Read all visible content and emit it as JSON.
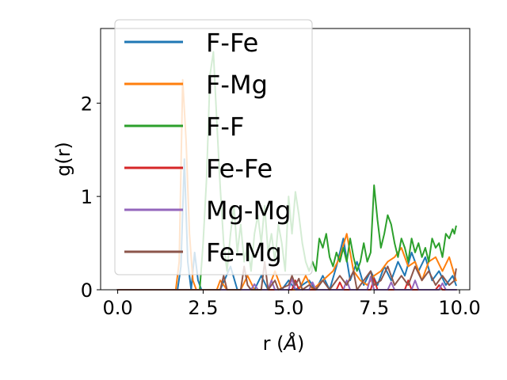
{
  "chart_data": {
    "type": "line",
    "xlabel_main": "r (",
    "xlabel_unit": "Å",
    "xlabel_close": ")",
    "ylabel": "g(r)",
    "xlim": [
      -0.5,
      10.3
    ],
    "ylim": [
      0,
      2.8
    ],
    "xticks": [
      0.0,
      2.5,
      5.0,
      7.5,
      10.0
    ],
    "xtick_labels": [
      "0.0",
      "2.5",
      "5.0",
      "7.5",
      "10.0"
    ],
    "yticks": [
      0,
      1,
      2
    ],
    "ytick_labels": [
      "0",
      "1",
      "2"
    ],
    "legend_position": "upper left",
    "grid": false,
    "series": [
      {
        "name": "F-Fe",
        "color": "#1f77b4",
        "points": [
          [
            0,
            0
          ],
          [
            1.75,
            0
          ],
          [
            1.85,
            0.25
          ],
          [
            1.95,
            1.4
          ],
          [
            2.05,
            0.3
          ],
          [
            2.15,
            0
          ],
          [
            2.25,
            0.4
          ],
          [
            2.35,
            0.1
          ],
          [
            2.45,
            0
          ],
          [
            3.0,
            0
          ],
          [
            3.3,
            0.25
          ],
          [
            3.5,
            0
          ],
          [
            4.0,
            0
          ],
          [
            4.2,
            0.15
          ],
          [
            4.4,
            0
          ],
          [
            4.8,
            0
          ],
          [
            5.0,
            0.1
          ],
          [
            5.2,
            0
          ],
          [
            5.6,
            0.1
          ],
          [
            5.8,
            0
          ],
          [
            6.0,
            0.15
          ],
          [
            6.2,
            0
          ],
          [
            6.4,
            0.25
          ],
          [
            6.6,
            0.55
          ],
          [
            6.8,
            0.1
          ],
          [
            7.0,
            0.3
          ],
          [
            7.2,
            0.05
          ],
          [
            7.4,
            0.2
          ],
          [
            7.6,
            0.05
          ],
          [
            7.8,
            0.25
          ],
          [
            8.0,
            0.1
          ],
          [
            8.2,
            0.3
          ],
          [
            8.4,
            0.15
          ],
          [
            8.6,
            0.4
          ],
          [
            8.8,
            0.2
          ],
          [
            9.0,
            0.35
          ],
          [
            9.2,
            0.1
          ],
          [
            9.4,
            0.2
          ],
          [
            9.6,
            0.05
          ],
          [
            9.8,
            0.15
          ],
          [
            9.9,
            0.05
          ]
        ]
      },
      {
        "name": "F-Mg",
        "color": "#ff7f0e",
        "points": [
          [
            0,
            0
          ],
          [
            1.7,
            0
          ],
          [
            1.8,
            0.3
          ],
          [
            1.9,
            2.25
          ],
          [
            2.0,
            1.6
          ],
          [
            2.1,
            0.6
          ],
          [
            2.2,
            0.1
          ],
          [
            2.3,
            0
          ],
          [
            2.9,
            0
          ],
          [
            3.0,
            0.1
          ],
          [
            3.2,
            0
          ],
          [
            3.6,
            0
          ],
          [
            3.8,
            0.15
          ],
          [
            4.0,
            0
          ],
          [
            4.4,
            0
          ],
          [
            4.6,
            0.2
          ],
          [
            4.8,
            0
          ],
          [
            5.3,
            0
          ],
          [
            5.5,
            0.15
          ],
          [
            5.7,
            0
          ],
          [
            6.0,
            0.1
          ],
          [
            6.3,
            0.2
          ],
          [
            6.5,
            0.35
          ],
          [
            6.7,
            0.6
          ],
          [
            6.9,
            0.2
          ],
          [
            7.1,
            0.1
          ],
          [
            7.3,
            0.05
          ],
          [
            7.5,
            0.15
          ],
          [
            7.7,
            0.2
          ],
          [
            7.9,
            0.3
          ],
          [
            8.1,
            0.35
          ],
          [
            8.3,
            0.45
          ],
          [
            8.5,
            0.25
          ],
          [
            8.7,
            0.3
          ],
          [
            8.9,
            0.1
          ],
          [
            9.1,
            0.3
          ],
          [
            9.3,
            0.35
          ],
          [
            9.5,
            0.2
          ],
          [
            9.7,
            0.35
          ],
          [
            9.9,
            0.1
          ]
        ]
      },
      {
        "name": "F-F",
        "color": "#2ca02c",
        "points": [
          [
            0,
            0
          ],
          [
            2.4,
            0
          ],
          [
            2.5,
            0.5
          ],
          [
            2.6,
            1.2
          ],
          [
            2.7,
            2.3
          ],
          [
            2.8,
            2.55
          ],
          [
            2.9,
            1.8
          ],
          [
            3.0,
            1.1
          ],
          [
            3.1,
            0.5
          ],
          [
            3.2,
            0.2
          ],
          [
            3.3,
            0.6
          ],
          [
            3.4,
            0.9
          ],
          [
            3.5,
            0.4
          ],
          [
            3.6,
            0.7
          ],
          [
            3.7,
            0.3
          ],
          [
            3.8,
            0.5
          ],
          [
            3.9,
            0.2
          ],
          [
            4.0,
            0.6
          ],
          [
            4.1,
            0.8
          ],
          [
            4.2,
            0.5
          ],
          [
            4.3,
            0.9
          ],
          [
            4.4,
            0.4
          ],
          [
            4.5,
            0.6
          ],
          [
            4.6,
            0.3
          ],
          [
            4.7,
            0.7
          ],
          [
            4.8,
            0.5
          ],
          [
            4.9,
            0.2
          ],
          [
            5.0,
            1.0
          ],
          [
            5.1,
            0.6
          ],
          [
            5.2,
            1.05
          ],
          [
            5.3,
            0.8
          ],
          [
            5.4,
            0.5
          ],
          [
            5.5,
            0.3
          ],
          [
            5.6,
            0.2
          ],
          [
            5.7,
            0.3
          ],
          [
            5.8,
            0.2
          ],
          [
            5.9,
            0.55
          ],
          [
            6.0,
            0.45
          ],
          [
            6.1,
            0.6
          ],
          [
            6.2,
            0.35
          ],
          [
            6.3,
            0.25
          ],
          [
            6.4,
            0.4
          ],
          [
            6.5,
            0.3
          ],
          [
            6.6,
            0.45
          ],
          [
            6.7,
            0.3
          ],
          [
            6.8,
            0.55
          ],
          [
            6.9,
            0.35
          ],
          [
            7.0,
            0.2
          ],
          [
            7.1,
            0.3
          ],
          [
            7.2,
            0.5
          ],
          [
            7.3,
            0.3
          ],
          [
            7.4,
            0.4
          ],
          [
            7.5,
            1.12
          ],
          [
            7.6,
            0.75
          ],
          [
            7.7,
            0.45
          ],
          [
            7.8,
            0.6
          ],
          [
            7.9,
            0.8
          ],
          [
            8.0,
            0.7
          ],
          [
            8.1,
            0.5
          ],
          [
            8.2,
            0.35
          ],
          [
            8.3,
            0.55
          ],
          [
            8.4,
            0.45
          ],
          [
            8.5,
            0.3
          ],
          [
            8.6,
            0.55
          ],
          [
            8.7,
            0.4
          ],
          [
            8.8,
            0.5
          ],
          [
            8.9,
            0.35
          ],
          [
            9.0,
            0.45
          ],
          [
            9.1,
            0.3
          ],
          [
            9.2,
            0.55
          ],
          [
            9.3,
            0.45
          ],
          [
            9.4,
            0.5
          ],
          [
            9.5,
            0.35
          ],
          [
            9.6,
            0.6
          ],
          [
            9.7,
            0.55
          ],
          [
            9.8,
            0.65
          ],
          [
            9.85,
            0.6
          ],
          [
            9.9,
            0.68
          ]
        ]
      },
      {
        "name": "Fe-Fe",
        "color": "#d62728",
        "points": [
          [
            0,
            0
          ],
          [
            5.1,
            0
          ],
          [
            5.2,
            0.1
          ],
          [
            5.3,
            0
          ],
          [
            6.4,
            0
          ],
          [
            6.5,
            0.08
          ],
          [
            6.6,
            0
          ],
          [
            7.4,
            0
          ],
          [
            7.5,
            0.12
          ],
          [
            7.6,
            0
          ],
          [
            8.4,
            0
          ],
          [
            8.5,
            0.1
          ],
          [
            8.6,
            0
          ],
          [
            9.3,
            0
          ],
          [
            9.4,
            0.05
          ],
          [
            9.5,
            0
          ],
          [
            9.9,
            0
          ]
        ]
      },
      {
        "name": "Mg-Mg",
        "color": "#9467bd",
        "points": [
          [
            0,
            0
          ],
          [
            3.9,
            0
          ],
          [
            4.0,
            0.06
          ],
          [
            4.1,
            0
          ],
          [
            4.4,
            0
          ],
          [
            4.5,
            0.1
          ],
          [
            4.6,
            0
          ],
          [
            5.0,
            0
          ],
          [
            5.1,
            0.12
          ],
          [
            5.2,
            0
          ],
          [
            5.6,
            0
          ],
          [
            5.7,
            0.08
          ],
          [
            5.8,
            0
          ],
          [
            6.6,
            0
          ],
          [
            6.7,
            0.1
          ],
          [
            6.8,
            0
          ],
          [
            7.3,
            0
          ],
          [
            7.4,
            0.14
          ],
          [
            7.5,
            0
          ],
          [
            7.9,
            0
          ],
          [
            8.0,
            0.08
          ],
          [
            8.1,
            0
          ],
          [
            8.6,
            0
          ],
          [
            8.7,
            0.1
          ],
          [
            8.8,
            0
          ],
          [
            9.4,
            0
          ],
          [
            9.5,
            0.07
          ],
          [
            9.6,
            0
          ],
          [
            9.9,
            0
          ]
        ]
      },
      {
        "name": "Fe-Mg",
        "color": "#8c564b",
        "points": [
          [
            0,
            0
          ],
          [
            3.0,
            0
          ],
          [
            3.1,
            0.15
          ],
          [
            3.2,
            0
          ],
          [
            3.6,
            0
          ],
          [
            3.7,
            0.25
          ],
          [
            3.8,
            0.05
          ],
          [
            3.9,
            0
          ],
          [
            4.2,
            0
          ],
          [
            4.3,
            0.3
          ],
          [
            4.4,
            0
          ],
          [
            4.6,
            0.1
          ],
          [
            4.7,
            0
          ],
          [
            5.0,
            0.05
          ],
          [
            5.1,
            0.15
          ],
          [
            5.2,
            0.05
          ],
          [
            5.3,
            0.12
          ],
          [
            5.4,
            0
          ],
          [
            5.6,
            0.05
          ],
          [
            5.8,
            0
          ],
          [
            6.0,
            0.1
          ],
          [
            6.2,
            0
          ],
          [
            6.5,
            0.15
          ],
          [
            6.7,
            0.05
          ],
          [
            6.9,
            0.2
          ],
          [
            7.0,
            0
          ],
          [
            7.2,
            0.1
          ],
          [
            7.4,
            0.2
          ],
          [
            7.5,
            0.05
          ],
          [
            7.7,
            0.1
          ],
          [
            7.9,
            0.25
          ],
          [
            8.1,
            0.05
          ],
          [
            8.3,
            0.15
          ],
          [
            8.5,
            0.05
          ],
          [
            8.7,
            0.25
          ],
          [
            8.9,
            0.1
          ],
          [
            9.1,
            0.2
          ],
          [
            9.3,
            0.05
          ],
          [
            9.5,
            0.15
          ],
          [
            9.7,
            0.05
          ],
          [
            9.85,
            0.1
          ],
          [
            9.9,
            0.22
          ]
        ]
      }
    ]
  }
}
